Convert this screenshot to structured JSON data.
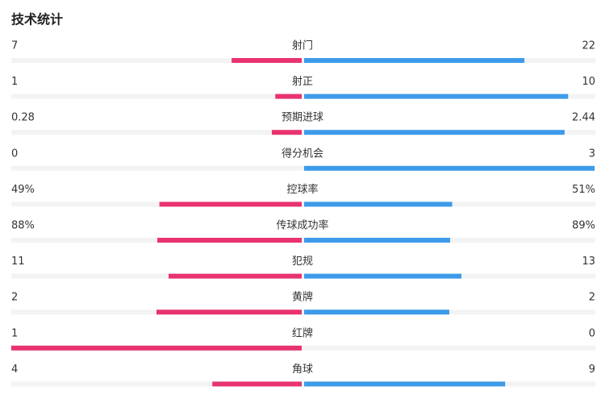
{
  "title": "技术统计",
  "rows": [
    {
      "label": "射门",
      "home": 7,
      "away": 22
    },
    {
      "label": "射正",
      "home": 1,
      "away": 10
    },
    {
      "label": "预期进球",
      "home": 0.28,
      "away": 2.44
    },
    {
      "label": "得分机会",
      "home": 0,
      "away": 3
    },
    {
      "label": "控球率",
      "home": 49,
      "away": 51,
      "home_label": "49%",
      "away_label": "51%"
    },
    {
      "label": "传球成功率",
      "home": 88,
      "away": 89,
      "home_label": "88%",
      "away_label": "89%"
    },
    {
      "label": "犯规",
      "home": 11,
      "away": 13
    },
    {
      "label": "黄牌",
      "home": 2,
      "away": 2
    },
    {
      "label": "红牌",
      "home": 1,
      "away": 0
    },
    {
      "label": "角球",
      "home": 4,
      "away": 9
    }
  ]
}
